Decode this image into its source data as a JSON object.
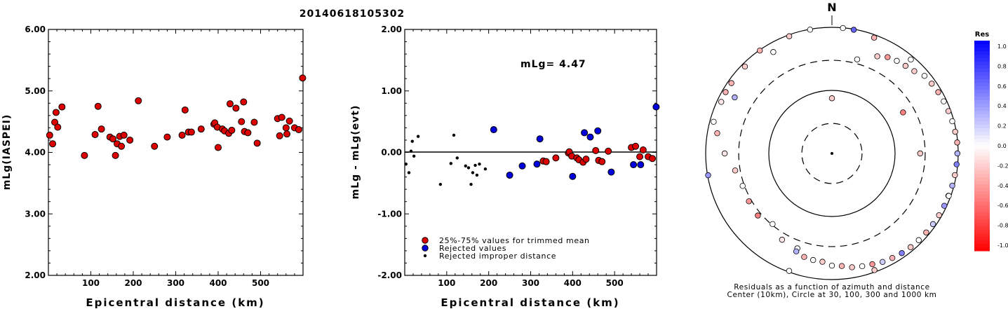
{
  "title": "20140618105302",
  "chart_data": [
    {
      "type": "scatter",
      "xlabel": "Epicentral distance (km)",
      "ylabel": "mLg(IASPEI)",
      "xlim": [
        0,
        600
      ],
      "ylim": [
        2.0,
        6.0
      ],
      "x_ticks": [
        "100",
        "200",
        "300",
        "400",
        "500"
      ],
      "y_ticks": [
        "2.00",
        "3.00",
        "4.00",
        "5.00",
        "6.00"
      ],
      "series": [
        {
          "color": "#dd0000",
          "points": [
            [
              3,
              4.28
            ],
            [
              10,
              4.14
            ],
            [
              15,
              4.49
            ],
            [
              18,
              4.65
            ],
            [
              22,
              4.41
            ],
            [
              32,
              4.74
            ],
            [
              85,
              3.95
            ],
            [
              110,
              4.29
            ],
            [
              117,
              4.75
            ],
            [
              125,
              4.38
            ],
            [
              145,
              4.25
            ],
            [
              152,
              4.22
            ],
            [
              158,
              3.95
            ],
            [
              162,
              4.14
            ],
            [
              168,
              4.26
            ],
            [
              172,
              4.1
            ],
            [
              178,
              4.28
            ],
            [
              192,
              4.2
            ],
            [
              212,
              4.84
            ],
            [
              250,
              4.1
            ],
            [
              280,
              4.25
            ],
            [
              315,
              4.28
            ],
            [
              322,
              4.69
            ],
            [
              330,
              4.33
            ],
            [
              337,
              4.33
            ],
            [
              360,
              4.38
            ],
            [
              390,
              4.46
            ],
            [
              392,
              4.48
            ],
            [
              398,
              4.41
            ],
            [
              400,
              4.08
            ],
            [
              410,
              4.38
            ],
            [
              415,
              4.35
            ],
            [
              425,
              4.31
            ],
            [
              428,
              4.79
            ],
            [
              432,
              4.36
            ],
            [
              442,
              4.72
            ],
            [
              455,
              4.5
            ],
            [
              460,
              4.82
            ],
            [
              462,
              4.34
            ],
            [
              470,
              4.32
            ],
            [
              485,
              4.49
            ],
            [
              492,
              4.15
            ],
            [
              540,
              4.55
            ],
            [
              545,
              4.27
            ],
            [
              550,
              4.57
            ],
            [
              560,
              4.4
            ],
            [
              562,
              4.3
            ],
            [
              568,
              4.51
            ],
            [
              580,
              4.4
            ],
            [
              590,
              4.37
            ],
            [
              599,
              5.21
            ]
          ]
        }
      ]
    },
    {
      "type": "scatter",
      "xlabel": "Epicentral distance (km)",
      "ylabel": "mLg - mLg(evt)",
      "xlim": [
        0,
        600
      ],
      "ylim": [
        -2.0,
        2.0
      ],
      "x_ticks": [
        "100",
        "200",
        "300",
        "400",
        "500"
      ],
      "y_ticks": [
        "-2.00",
        "-1.00",
        "0.00",
        "1.00",
        "2.00"
      ],
      "annotation": "mLg= 4.47",
      "reference_line": 0,
      "legend": [
        {
          "label": "25%-75% values for trimmed mean",
          "color": "#dd0000"
        },
        {
          "label": "Rejected values",
          "color": "#0000dd"
        },
        {
          "label": "Rejected improper distance",
          "color": "#000000"
        }
      ],
      "series": [
        {
          "name": "25%-75% values for trimmed mean",
          "color": "#dd0000",
          "points": [
            [
              330,
              -0.14
            ],
            [
              337,
              -0.15
            ],
            [
              360,
              -0.09
            ],
            [
              390,
              -0.01
            ],
            [
              392,
              0.01
            ],
            [
              398,
              -0.06
            ],
            [
              410,
              -0.09
            ],
            [
              415,
              -0.12
            ],
            [
              425,
              -0.16
            ],
            [
              432,
              -0.11
            ],
            [
              455,
              0.03
            ],
            [
              462,
              -0.13
            ],
            [
              470,
              -0.15
            ],
            [
              485,
              0.02
            ],
            [
              540,
              0.08
            ],
            [
              550,
              0.1
            ],
            [
              560,
              -0.07
            ],
            [
              568,
              0.04
            ],
            [
              580,
              -0.07
            ],
            [
              590,
              -0.1
            ]
          ]
        },
        {
          "name": "Rejected values",
          "color": "#0000dd",
          "points": [
            [
              212,
              0.37
            ],
            [
              250,
              -0.37
            ],
            [
              280,
              -0.22
            ],
            [
              315,
              -0.19
            ],
            [
              322,
              0.22
            ],
            [
              400,
              -0.39
            ],
            [
              428,
              0.32
            ],
            [
              442,
              0.25
            ],
            [
              460,
              0.35
            ],
            [
              492,
              -0.32
            ],
            [
              545,
              -0.2
            ],
            [
              562,
              -0.2
            ],
            [
              599,
              0.74
            ]
          ]
        },
        {
          "name": "Rejected improper distance",
          "color": "#000000",
          "points": [
            [
              3,
              -0.19
            ],
            [
              10,
              -0.33
            ],
            [
              15,
              0.02
            ],
            [
              18,
              0.18
            ],
            [
              22,
              -0.06
            ],
            [
              32,
              0.26
            ],
            [
              85,
              -0.52
            ],
            [
              110,
              -0.18
            ],
            [
              117,
              0.28
            ],
            [
              125,
              -0.09
            ],
            [
              145,
              -0.22
            ],
            [
              152,
              -0.25
            ],
            [
              158,
              -0.52
            ],
            [
              162,
              -0.33
            ],
            [
              168,
              -0.21
            ],
            [
              172,
              -0.37
            ],
            [
              178,
              -0.19
            ],
            [
              192,
              -0.27
            ]
          ]
        }
      ]
    },
    {
      "type": "scatter",
      "subtype": "polar",
      "north_label": "N",
      "caption_line1": "Residuals as a function of azimuth and distance",
      "caption_line2": "Center (10km), Circle at 30, 100, 300 and 1000 km",
      "colorbar": {
        "title": "Res",
        "ticks": [
          "1.0",
          "0.8",
          "0.6",
          "0.4",
          "0.2",
          "0.0",
          "-0.2",
          "-0.4",
          "-0.6",
          "-0.8",
          "-1.0"
        ],
        "range": [
          -1.0,
          1.0
        ],
        "positive_color": "#0000ff",
        "negative_color": "#ff0000"
      },
      "points": [
        [
          0,
          75,
          -0.2
        ],
        [
          90,
          250,
          -0.2
        ],
        [
          200,
          400,
          0.0
        ],
        [
          300,
          600,
          0.3
        ],
        [
          330,
          720,
          0.0
        ],
        [
          20,
          900,
          -0.3
        ],
        [
          40,
          880,
          0.0
        ],
        [
          110,
          920,
          0.25
        ],
        [
          160,
          930,
          -0.2
        ],
        [
          200,
          960,
          0.0
        ],
        [
          260,
          980,
          0.4
        ],
        [
          300,
          880,
          -0.3
        ],
        [
          10,
          980,
          0.6
        ],
        [
          5,
          990,
          0.0
        ],
        [
          350,
          985,
          0.0
        ],
        [
          340,
          950,
          -0.2
        ],
        [
          325,
          980,
          -0.3
        ],
        [
          315,
          890,
          -0.2
        ],
        [
          305,
          880,
          -0.3
        ],
        [
          295,
          860,
          -0.1
        ],
        [
          285,
          870,
          0.0
        ],
        [
          280,
          700,
          -0.3
        ],
        [
          270,
          500,
          -0.1
        ],
        [
          260,
          360,
          -0.2
        ],
        [
          250,
          320,
          0.0
        ],
        [
          240,
          330,
          -0.4
        ],
        [
          230,
          340,
          -0.5
        ],
        [
          220,
          290,
          0.0
        ],
        [
          210,
          380,
          -0.1
        ],
        [
          200,
          450,
          0.3
        ],
        [
          195,
          500,
          -0.3
        ],
        [
          190,
          520,
          0.0
        ],
        [
          185,
          530,
          -0.2
        ],
        [
          180,
          600,
          0.0
        ],
        [
          175,
          620,
          -0.3
        ],
        [
          170,
          680,
          -0.2
        ],
        [
          165,
          710,
          0.0
        ],
        [
          160,
          740,
          -0.4
        ],
        [
          155,
          790,
          0.2
        ],
        [
          150,
          820,
          -0.3
        ],
        [
          145,
          850,
          0.5
        ],
        [
          140,
          870,
          -0.2
        ],
        [
          135,
          880,
          0.0
        ],
        [
          130,
          890,
          -0.3
        ],
        [
          125,
          900,
          0.2
        ],
        [
          120,
          910,
          -0.2
        ],
        [
          115,
          920,
          0.4
        ],
        [
          110,
          930,
          0.0
        ],
        [
          105,
          940,
          0.3
        ],
        [
          100,
          950,
          -0.2
        ],
        [
          95,
          960,
          0.5
        ],
        [
          90,
          970,
          0.3
        ],
        [
          85,
          980,
          -0.3
        ],
        [
          80,
          960,
          -0.2
        ],
        [
          75,
          940,
          0.0
        ],
        [
          70,
          920,
          -0.2
        ],
        [
          65,
          900,
          0.0
        ],
        [
          60,
          880,
          -0.3
        ],
        [
          55,
          850,
          -0.2
        ],
        [
          50,
          820,
          0.0
        ],
        [
          45,
          700,
          -0.2
        ],
        [
          40,
          650,
          -0.2
        ],
        [
          35,
          620,
          0.0
        ],
        [
          30,
          580,
          -0.4
        ],
        [
          25,
          500,
          -0.2
        ],
        [
          15,
          350,
          0.0
        ],
        [
          60,
          200,
          -0.5
        ]
      ]
    }
  ]
}
